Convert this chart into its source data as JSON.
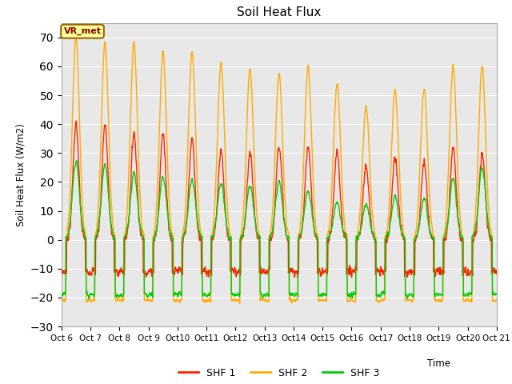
{
  "title": "Soil Heat Flux",
  "ylabel": "Soil Heat Flux (W/m2)",
  "xlabel": "Time",
  "ylim": [
    -30,
    75
  ],
  "yticks": [
    -30,
    -20,
    -10,
    0,
    10,
    20,
    30,
    40,
    50,
    60,
    70
  ],
  "bg_color": "#e8e8e8",
  "annotation_text": "VR_met",
  "annotation_box_color": "#ffff99",
  "annotation_border_color": "#996600",
  "series": [
    "SHF 1",
    "SHF 2",
    "SHF 3"
  ],
  "colors": [
    "#ff2200",
    "#ffaa00",
    "#00cc00"
  ],
  "linewidth": 1.0,
  "days": 15,
  "n_points_per_day": 144,
  "shf2_peaks": [
    70,
    68,
    68,
    65,
    65,
    61,
    59,
    58,
    60,
    54,
    46,
    52,
    52,
    60,
    60
  ],
  "shf1_peaks": [
    40,
    40,
    37,
    37,
    35,
    31,
    30,
    33,
    32,
    31,
    26,
    29,
    27,
    32,
    30
  ],
  "shf3_peaks": [
    27,
    26,
    23,
    22,
    21,
    20,
    19,
    20,
    17,
    13,
    12,
    15,
    14,
    21,
    25
  ],
  "shf1_night": -11,
  "shf2_night": -21,
  "shf3_night": -19
}
